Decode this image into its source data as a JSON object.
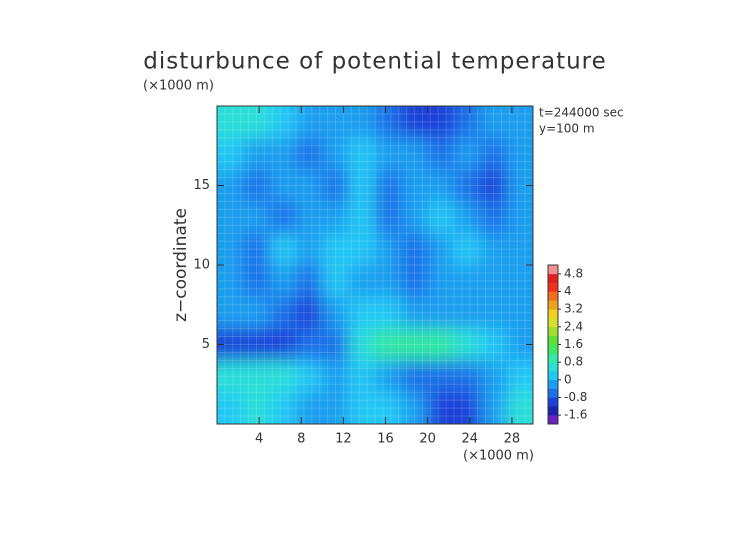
{
  "chart_data": {
    "type": "contour",
    "title": "disturbunce of potential temperature",
    "y_unit_label": "(×1000 m)",
    "x_unit_label": "(×1000 m)",
    "ylabel": "z−coordinate",
    "annotations": [
      "t=244000 sec",
      "y=100 m"
    ],
    "x": [
      1.25,
      3.75,
      6.25,
      8.75,
      11.25,
      13.75,
      16.25,
      18.75,
      21.25,
      23.75,
      26.25,
      28.75
    ],
    "y": [
      19,
      17,
      15,
      13,
      11,
      9,
      7,
      5,
      3,
      1
    ],
    "z": [
      [
        0.4,
        0.4,
        0,
        -0.4,
        -0.4,
        -0.4,
        -0.8,
        -1.2,
        -1.2,
        -0.8,
        -0.4,
        -0.4
      ],
      [
        0,
        -0.4,
        -0.4,
        -0.8,
        -0.4,
        0,
        -0.4,
        -0.4,
        -0.8,
        -0.4,
        -0.8,
        -0.4
      ],
      [
        -0.4,
        -0.8,
        -0.4,
        -0.4,
        -0.8,
        0,
        -0.8,
        -0.4,
        -0.4,
        -0.8,
        -1.2,
        -0.4
      ],
      [
        -0.4,
        -0.4,
        -0.8,
        -0.4,
        -0.4,
        0,
        -0.8,
        -0.4,
        0,
        -0.4,
        -0.8,
        -0.4
      ],
      [
        -0.4,
        -0.8,
        0,
        -0.4,
        0,
        0,
        -0.4,
        -0.8,
        -0.4,
        0,
        -0.4,
        -0.4
      ],
      [
        -0.4,
        -0.8,
        -0.4,
        -0.8,
        0,
        -0.4,
        -0.4,
        -0.8,
        -0.4,
        -0.4,
        -0.4,
        -0.4
      ],
      [
        -0.4,
        -0.4,
        -0.8,
        -1.2,
        -0.4,
        0,
        0,
        -0.4,
        -0.4,
        -0.4,
        -0.4,
        -0.4
      ],
      [
        -1.2,
        -1.2,
        -1.2,
        -0.8,
        -0.8,
        0.4,
        0.8,
        0.8,
        0.8,
        0.4,
        0,
        -0.4
      ],
      [
        0.4,
        0.4,
        0.4,
        0,
        -0.4,
        0,
        -0.4,
        -0.8,
        -0.8,
        -0.8,
        -0.4,
        0
      ],
      [
        0,
        0.4,
        0,
        -0.4,
        -0.4,
        0,
        0,
        -0.4,
        -1.2,
        -1.2,
        -0.4,
        0.4
      ]
    ],
    "xlim": [
      0,
      30
    ],
    "xticks": [
      4,
      8,
      12,
      16,
      20,
      24,
      28
    ],
    "ylim": [
      0,
      20
    ],
    "yticks": [
      5,
      10,
      15
    ],
    "colorbar": {
      "levels": [
        -1.6,
        -1.2,
        -0.8,
        -0.4,
        0,
        0.4,
        0.8,
        1.2,
        1.6,
        2,
        2.4,
        2.8,
        3.2,
        3.6,
        4,
        4.4,
        4.8
      ],
      "colors": [
        "#6a1fbf",
        "#1a22b0",
        "#1a40d8",
        "#1f6fe8",
        "#1c9ef0",
        "#22c8f5",
        "#2adfd8",
        "#33e8a0",
        "#3fe860",
        "#5de033",
        "#a0e030",
        "#d8e030",
        "#f0d020",
        "#f0a020",
        "#f07020",
        "#f03020",
        "#e02020",
        "#f09090"
      ],
      "ticks": [
        4.8,
        4,
        3.2,
        2.4,
        1.6,
        0.8,
        0,
        -0.8,
        -1.6
      ]
    }
  }
}
